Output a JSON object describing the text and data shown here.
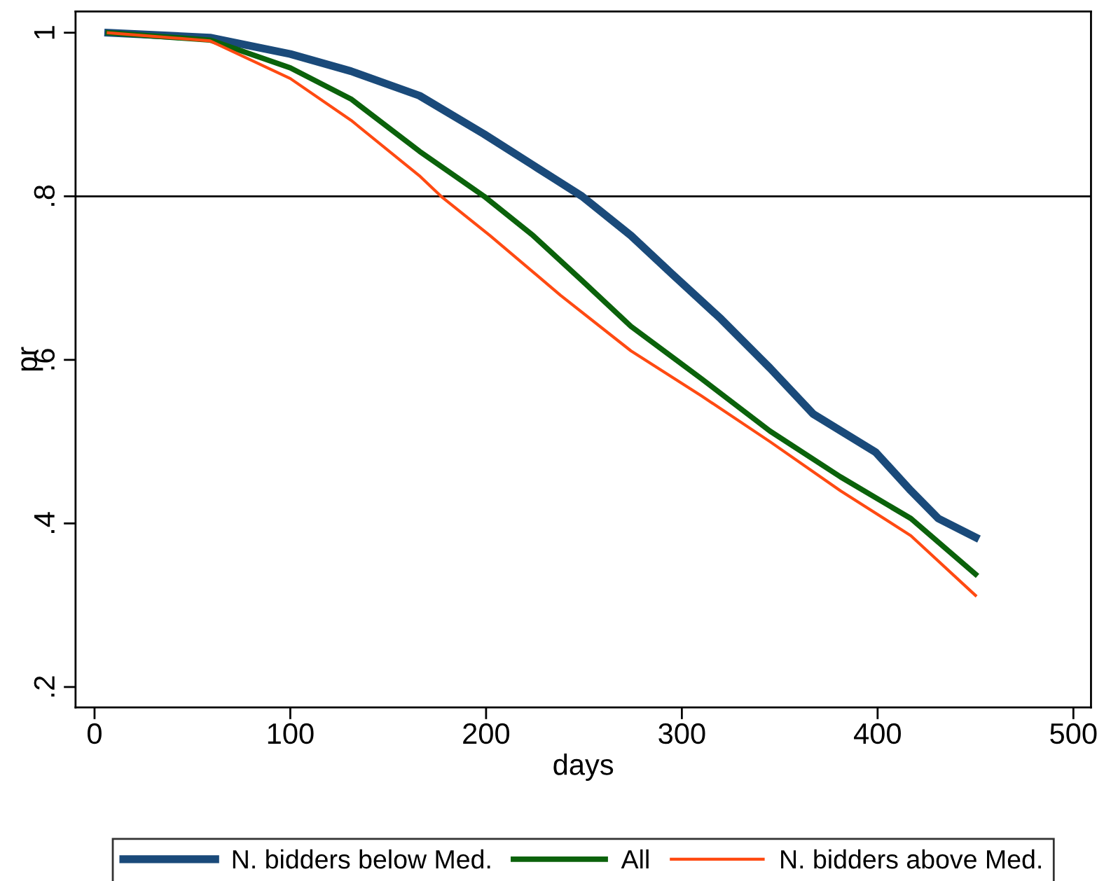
{
  "chart_data": {
    "type": "line",
    "xlabel": "days",
    "ylabel": "pr",
    "xlim": [
      -9.7,
      509
    ],
    "ylim": [
      0.175,
      1.026
    ],
    "xticks": [
      0,
      100,
      200,
      300,
      400,
      500
    ],
    "yticks": [
      {
        "value": 0.2,
        "label": ".2"
      },
      {
        "value": 0.4,
        "label": ".4"
      },
      {
        "value": 0.6,
        "label": ".6"
      },
      {
        "value": 0.8,
        "label": ".8"
      },
      {
        "value": 1,
        "label": "1"
      }
    ],
    "grid": false,
    "legend": "bottom",
    "marker": "none",
    "line_style": "solid",
    "ref_lines": [
      {
        "axis": "y",
        "value": 0.8,
        "color": "#000000"
      }
    ],
    "series": [
      {
        "name": "N. bidders below Med.",
        "color": "#1a4a7a",
        "x": [
          7,
          59,
          100,
          131,
          166,
          199,
          224,
          249,
          274,
          295,
          320,
          345,
          367,
          399,
          417,
          431,
          450
        ],
        "values": [
          1.0,
          0.994,
          0.974,
          0.953,
          0.923,
          0.876,
          0.838,
          0.8,
          0.752,
          0.705,
          0.65,
          0.59,
          0.534,
          0.487,
          0.44,
          0.406,
          0.383
        ]
      },
      {
        "name": "All",
        "color": "#0b620b",
        "x": [
          7,
          59,
          100,
          131,
          166,
          199,
          224,
          249,
          274,
          310,
          345,
          381,
          417,
          450
        ],
        "values": [
          1.0,
          0.991,
          0.957,
          0.919,
          0.855,
          0.8,
          0.752,
          0.697,
          0.641,
          0.577,
          0.513,
          0.457,
          0.406,
          0.338
        ]
      },
      {
        "name": "N. bidders above Med.",
        "color": "#ff4a12",
        "x": [
          7,
          59,
          100,
          131,
          166,
          177,
          202,
          238,
          274,
          310,
          345,
          381,
          417,
          450
        ],
        "values": [
          1.0,
          0.99,
          0.944,
          0.893,
          0.825,
          0.8,
          0.752,
          0.679,
          0.611,
          0.556,
          0.5,
          0.44,
          0.385,
          0.312
        ]
      }
    ]
  }
}
